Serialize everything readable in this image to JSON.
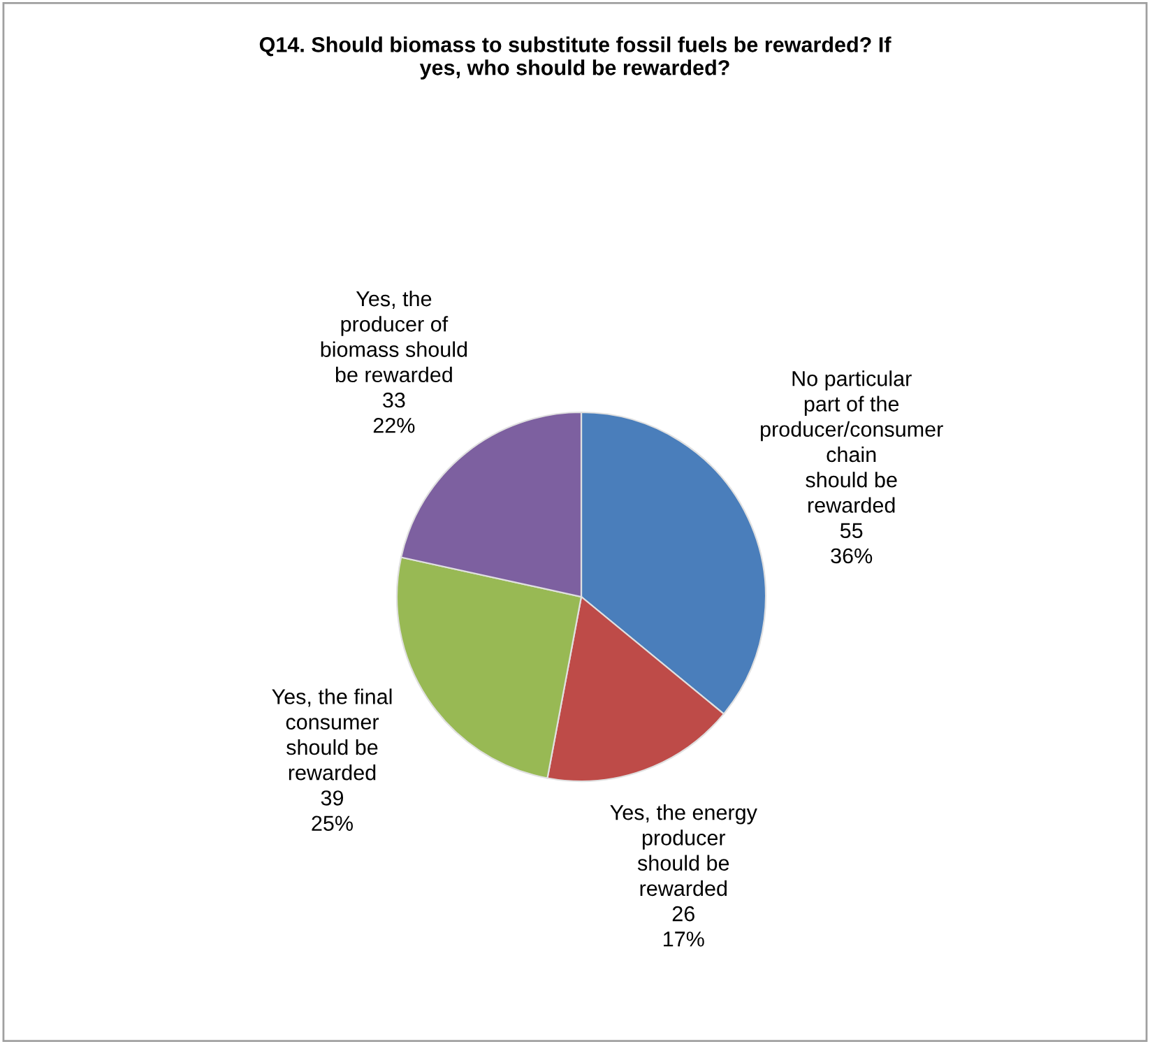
{
  "chart_data": {
    "type": "pie",
    "title": "Q14. Should biomass to substitute fossil fuels be rewarded? If\nyes, who should be rewarded?",
    "categories": [
      "No particular\npart of the\nproducer/consumer\nchain\nshould be\nrewarded",
      "Yes, the energy\nproducer\nshould be\nrewarded",
      "Yes, the final\nconsumer\nshould be\nrewarded",
      "Yes, the\nproducer of\nbiomass should\nbe rewarded"
    ],
    "values": [
      55,
      26,
      39,
      33
    ],
    "value_labels": [
      "55\n36%",
      "26\n17%",
      "39\n25%",
      "33\n22%"
    ],
    "colors": [
      "#4a7ebb",
      "#be4b48",
      "#98b954",
      "#7d60a0"
    ]
  }
}
